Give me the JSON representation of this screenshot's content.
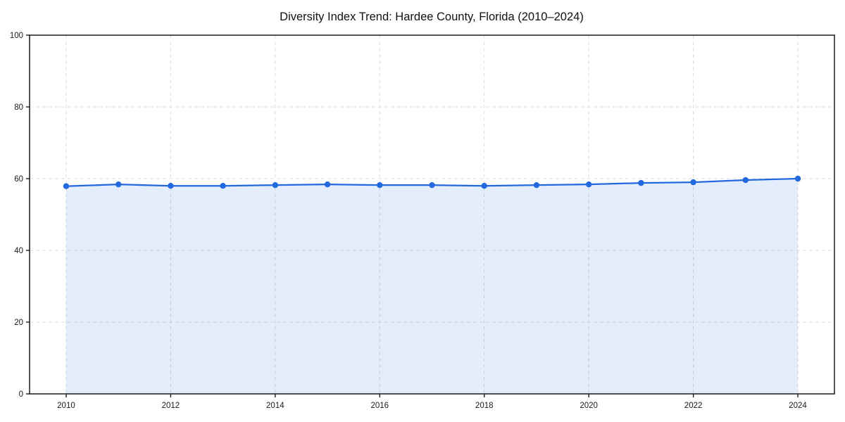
{
  "chart_data": {
    "type": "area",
    "title": "Diversity Index Trend: Hardee County, Florida (2010–2024)",
    "xlabel": "",
    "ylabel": "",
    "x": [
      2010,
      2011,
      2012,
      2013,
      2014,
      2015,
      2016,
      2017,
      2018,
      2019,
      2020,
      2021,
      2022,
      2023,
      2024
    ],
    "series": [
      {
        "name": "Diversity Index",
        "values": [
          57.9,
          58.4,
          58.0,
          58.0,
          58.2,
          58.4,
          58.2,
          58.2,
          58.0,
          58.2,
          58.4,
          58.8,
          59.0,
          59.6,
          60.0
        ]
      }
    ],
    "xlim": [
      2009.3,
      2024.7
    ],
    "ylim": [
      0,
      100
    ],
    "x_ticks": [
      2010,
      2012,
      2014,
      2016,
      2018,
      2020,
      2022,
      2024
    ],
    "y_ticks": [
      0,
      20,
      40,
      60,
      80,
      100
    ],
    "grid": true,
    "grid_style": "dashed",
    "legend": "none",
    "marker": "circle",
    "colors": {
      "line": "#2268df",
      "marker": "#2268df",
      "fill": "#2268df",
      "fill_opacity": 0.12,
      "grid": "#dcdcdc",
      "axis": "#1a1a1a",
      "text": "#1a1a1a",
      "background": "#ffffff"
    }
  }
}
